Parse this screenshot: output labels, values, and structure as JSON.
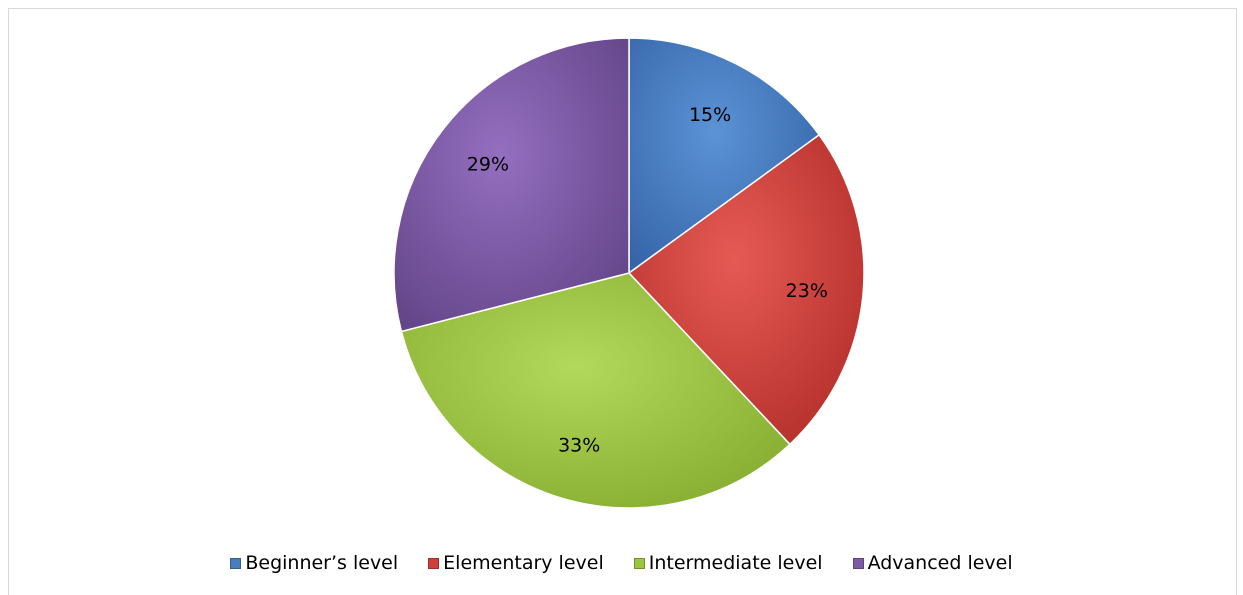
{
  "chart_data": {
    "type": "pie",
    "title": "",
    "categories": [
      "Beginner’s level",
      "Elementary level",
      "Intermediate level",
      "Advanced level"
    ],
    "values": [
      15,
      23,
      33,
      29
    ],
    "data_labels": [
      "15%",
      "23%",
      "33%",
      "29%"
    ],
    "colors": [
      "#4a7ebb",
      "#d23f3a",
      "#9bc440",
      "#7d5ba6"
    ],
    "start_angle_deg": 0,
    "direction": "clockwise",
    "legend_position": "bottom"
  }
}
